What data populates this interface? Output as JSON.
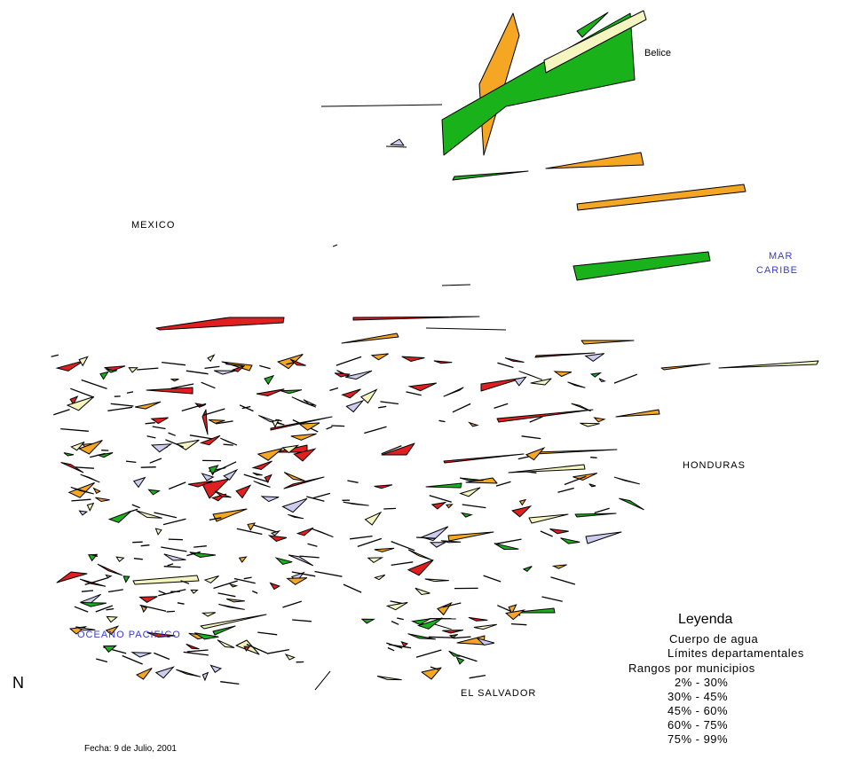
{
  "labels": {
    "belice": "Belice",
    "mexico": "MEXICO",
    "mar_caribe_1": "MAR",
    "mar_caribe_2": "CARIBE",
    "honduras": "HONDURAS",
    "oceano_pacifico": "OCEANO PACIFICO",
    "el_salvador": "EL SALVADOR"
  },
  "north_label": "N",
  "fecha": "Fecha: 9 de Julio, 2001",
  "legend": {
    "title": "Leyenda",
    "cuerpo_agua": "Cuerpo de agua",
    "limites": "Límites departamentales",
    "rangos_title": "Rangos por municipios",
    "ranges": [
      {
        "label": "2% - 30%",
        "color": "#f5f5c0"
      },
      {
        "label": "30% - 45%",
        "color": "#ccccee"
      },
      {
        "label": "45% - 60%",
        "color": "#1ab21a"
      },
      {
        "label": "60% - 75%",
        "color": "#f5a623"
      },
      {
        "label": "75% - 99%",
        "color": "#e02020"
      }
    ]
  },
  "colors": {
    "water_label": "#3a3acf",
    "range_1": "#f5f5c0",
    "range_2": "#ccccee",
    "range_3": "#1ab21a",
    "range_4": "#f5a623",
    "range_5": "#e02020"
  }
}
